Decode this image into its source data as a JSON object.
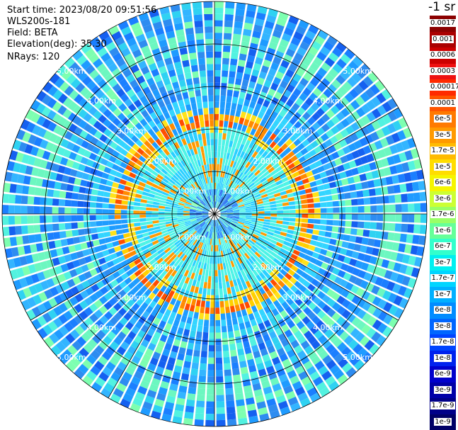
{
  "info": {
    "start_time": "Start time: 2023/08/20 09:51:56",
    "device": "WLS200s-181",
    "field": "Field: BETA",
    "elevation": "Elevation(deg): 35.30",
    "nrays": "NRays: 120"
  },
  "range_labels": [
    "1.00km",
    "2.00km",
    "3.00km",
    "4.00km",
    "5.00km"
  ],
  "colorbar": {
    "unit": "-1 sr",
    "labels": [
      "0.0017",
      "0.001",
      "0.0006",
      "0.0003",
      "0.00017",
      "0.0001",
      "6e-5",
      "3e-5",
      "1.7e-5",
      "1e-5",
      "6e-6",
      "3e-6",
      "1.7e-6",
      "1e-6",
      "6e-7",
      "3e-7",
      "1.7e-7",
      "1e-7",
      "6e-8",
      "3e-8",
      "1.7e-8",
      "1e-8",
      "6e-9",
      "3e-9",
      "1.7e-9",
      "1e-9"
    ]
  }
}
